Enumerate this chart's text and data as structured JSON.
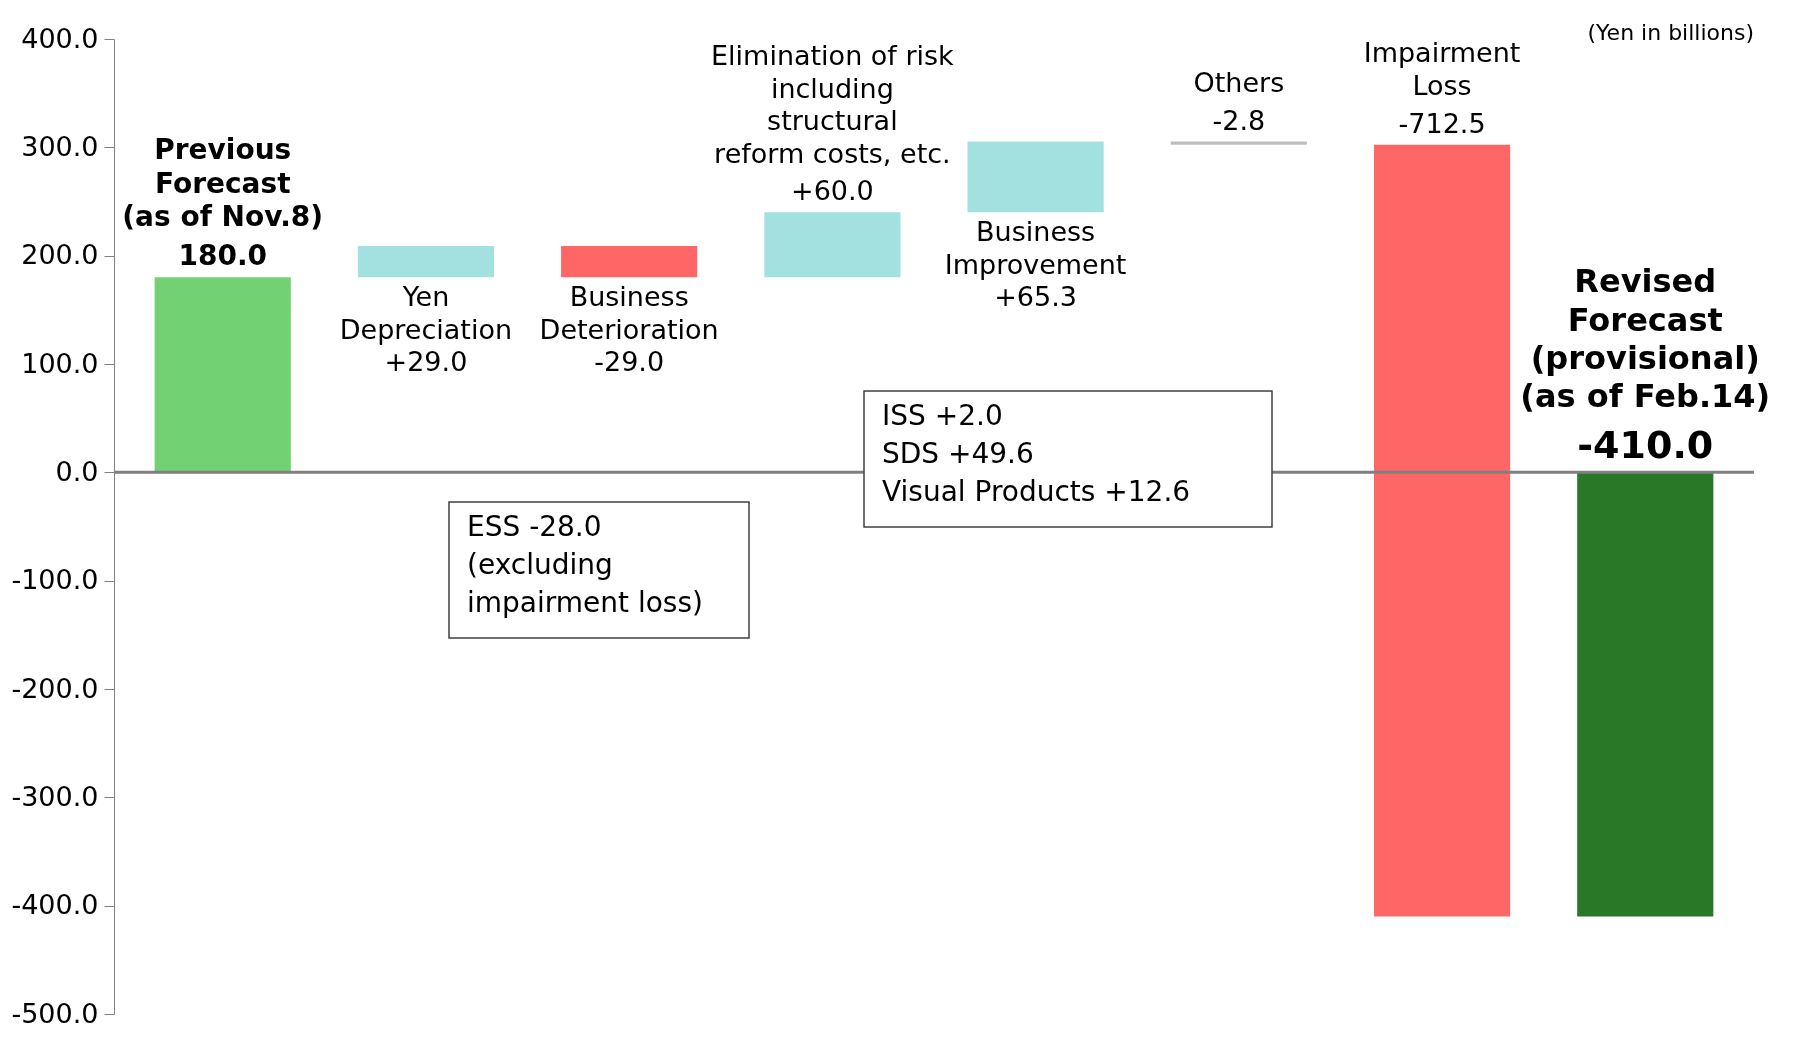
{
  "chart_data": {
    "type": "bar",
    "categories": [
      "Previous\nForecast\n(as of Nov.8)",
      "Yen\nDepreciation",
      "Business\nDeterioration",
      "Elimination of risk\nincluding\nstructural\nreform costs, etc.",
      "Business\nImprovement",
      "Others",
      "Impairment\nLoss",
      "Revised\nForecast\n(provisional)\n(as of Feb.14)"
    ],
    "values": [
      180,
      29,
      -29,
      60,
      65.3,
      -2.8,
      -712.5,
      -410
    ],
    "base": [
      0,
      180,
      209,
      180,
      240,
      305.3,
      302.5,
      0
    ],
    "colors": [
      "#72d172",
      "#a3e0e0",
      "#ff6666",
      "#a3e0e0",
      "#a3e0e0",
      "#bfbfbf",
      "#ff6666",
      "#287828"
    ],
    "value_labels": [
      "180.0",
      "+29.0",
      "-29.0",
      "+60.0",
      "+65.3",
      "-2.8",
      "-712.5",
      "-410.0"
    ],
    "ylim": [
      -500,
      400
    ],
    "yticks": [
      {
        "value": -500,
        "label": "-500.0"
      },
      {
        "value": -400,
        "label": "-400.0"
      },
      {
        "value": -300,
        "label": "-300.0"
      },
      {
        "value": -200,
        "label": "-200.0"
      },
      {
        "value": -100,
        "label": "-100.0"
      },
      {
        "value": 0,
        "label": "0.0"
      },
      {
        "value": 100,
        "label": "100.0"
      },
      {
        "value": 200,
        "label": "200.0"
      },
      {
        "value": 300,
        "label": "300.0"
      },
      {
        "value": 400,
        "label": "400.0"
      }
    ],
    "ref_lines": [
      {
        "axis": "y",
        "value": 0,
        "color": "#808080"
      }
    ],
    "annotations": [
      "ESS -28.0\n(excluding\nimpairment loss)",
      "ISS +2.0\nSDS +49.6\nVisual Products +12.6",
      "(Yen in billions)"
    ]
  }
}
